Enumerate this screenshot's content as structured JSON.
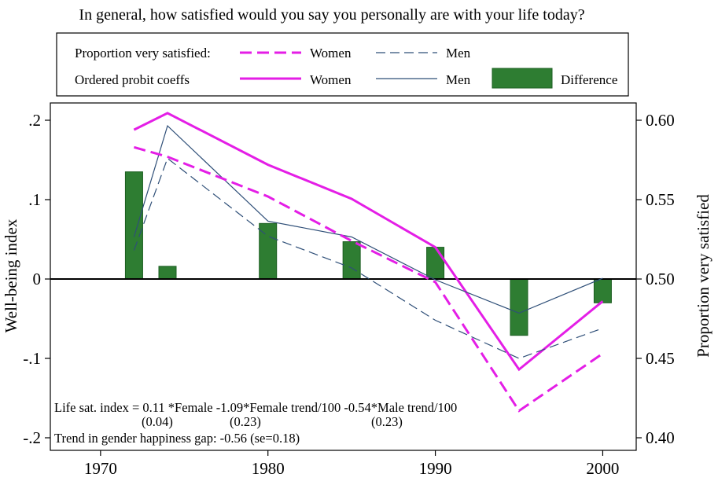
{
  "colors": {
    "women": "#e41ee6",
    "men": "#2f4f78",
    "difference_fill": "#2e7d32",
    "difference_stroke": "#1b5e20"
  },
  "chart_data": {
    "type": "line",
    "title": "In general, how satisfied would you say you personally are with your life today?",
    "ylabel_left": "Well-being index",
    "ylabel_right": "Proportion very satisfied",
    "xlim": [
      1967,
      2002
    ],
    "ylim_left": [
      -0.2,
      0.2
    ],
    "ylim_right": [
      0.4,
      0.6
    ],
    "x_ticks": [
      1970,
      1980,
      1990,
      2000
    ],
    "x_tick_labels": [
      "1970",
      "1980",
      "1990",
      "2000"
    ],
    "y_left_ticks": [
      -0.2,
      -0.1,
      0,
      0.1,
      0.2
    ],
    "y_left_tick_labels": [
      "-.2",
      "-.1",
      "0",
      ".1",
      ".2"
    ],
    "y_right_ticks": [
      0.4,
      0.45,
      0.5,
      0.55,
      0.6
    ],
    "y_right_tick_labels": [
      "0.40",
      "0.45",
      "0.50",
      "0.55",
      "0.60"
    ],
    "legend": {
      "row1_label": "Proportion very satisfied:",
      "row2_label": "Ordered probit coeffs",
      "women": "Women",
      "men": "Men",
      "difference": "Difference"
    },
    "series": [
      {
        "name": "Women",
        "group": "Ordered probit coeffs",
        "axis": "left",
        "style": "solid-thick",
        "x": [
          1972,
          1974,
          1980,
          1985,
          1990,
          1995,
          2000
        ],
        "y": [
          0.188,
          0.209,
          0.144,
          0.101,
          0.04,
          -0.114,
          -0.028
        ]
      },
      {
        "name": "Men",
        "group": "Ordered probit coeffs",
        "axis": "left",
        "style": "solid-thin",
        "x": [
          1972,
          1974,
          1980,
          1985,
          1990,
          1995,
          2000
        ],
        "y": [
          0.053,
          0.193,
          0.073,
          0.053,
          -0.001,
          -0.043,
          0.001
        ]
      },
      {
        "name": "Women",
        "group": "Proportion very satisfied",
        "axis": "right",
        "style": "dash-thick",
        "x": [
          1972,
          1974,
          1980,
          1985,
          1990,
          1995,
          2000
        ],
        "y": [
          0.583,
          0.577,
          0.552,
          0.524,
          0.498,
          0.417,
          0.453
        ]
      },
      {
        "name": "Men",
        "group": "Proportion very satisfied",
        "axis": "right",
        "style": "dash-thin",
        "x": [
          1972,
          1974,
          1980,
          1985,
          1990,
          1995,
          2000
        ],
        "y": [
          0.518,
          0.576,
          0.527,
          0.507,
          0.474,
          0.45,
          0.469
        ]
      },
      {
        "name": "Difference",
        "group": "Ordered probit coeffs",
        "axis": "left",
        "style": "bar",
        "x": [
          1972,
          1974,
          1980,
          1985,
          1990,
          1995,
          2000
        ],
        "y": [
          0.135,
          0.016,
          0.07,
          0.047,
          0.04,
          -0.071,
          -0.03
        ]
      }
    ],
    "annotations": {
      "line1": "Life sat. index = 0.11 *Female -1.09*Female trend/100 -0.54*Male trend/100",
      "se1": "(0.04)",
      "se2": "(0.23)",
      "se3": "(0.23)",
      "line2": "Trend in gender happiness gap: -0.56  (se=0.18)"
    }
  }
}
